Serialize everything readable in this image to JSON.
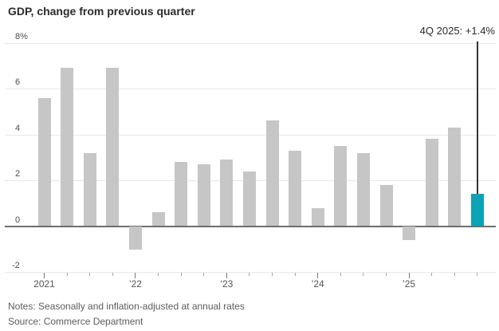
{
  "title": "GDP, change from previous quarter",
  "annotation": {
    "label": "4Q 2025: +1.4%"
  },
  "notes": "Notes: Seasonally and inflation-adjusted at annual rates",
  "source": "Source: Commerce Department",
  "colors": {
    "bar": "#c6c6c6",
    "highlight": "#0ba3b6",
    "zero_line": "#6e6e6e",
    "gridline": "#e9e9e9",
    "annotation_line": "#333333",
    "text_dark": "#2b2b2b",
    "axis_text": "#4f4f4f"
  },
  "chart_data": {
    "type": "bar",
    "title": "GDP, change from previous quarter",
    "categories": [
      "1Q 2021",
      "2Q 2021",
      "3Q 2021",
      "4Q 2021",
      "1Q 2022",
      "2Q 2022",
      "3Q 2022",
      "4Q 2022",
      "1Q 2023",
      "2Q 2023",
      "3Q 2023",
      "4Q 2023",
      "1Q 2024",
      "2Q 2024",
      "3Q 2024",
      "4Q 2024",
      "1Q 2025",
      "2Q 2025",
      "3Q 2025",
      "4Q 2025"
    ],
    "values": [
      5.6,
      6.9,
      3.2,
      6.9,
      -1.0,
      0.6,
      2.8,
      2.7,
      2.9,
      2.4,
      4.6,
      3.3,
      0.8,
      3.5,
      3.2,
      1.8,
      -0.6,
      3.8,
      4.3,
      1.4
    ],
    "highlight_index": 19,
    "highlight_label": "4Q 2025: +1.4%",
    "ylim": [
      -2,
      8
    ],
    "yticks": [
      {
        "value": 8,
        "label": "8%"
      },
      {
        "value": 6,
        "label": "6"
      },
      {
        "value": 4,
        "label": "4"
      },
      {
        "value": 2,
        "label": "2"
      },
      {
        "value": 0,
        "label": "0"
      },
      {
        "value": -2,
        "label": "-2"
      }
    ],
    "xticks": [
      {
        "index": 0,
        "label": "2021"
      },
      {
        "index": 4,
        "label": "’22"
      },
      {
        "index": 8,
        "label": "’23"
      },
      {
        "index": 12,
        "label": "’24"
      },
      {
        "index": 16,
        "label": "’25"
      }
    ],
    "grid": true,
    "legend": false
  }
}
